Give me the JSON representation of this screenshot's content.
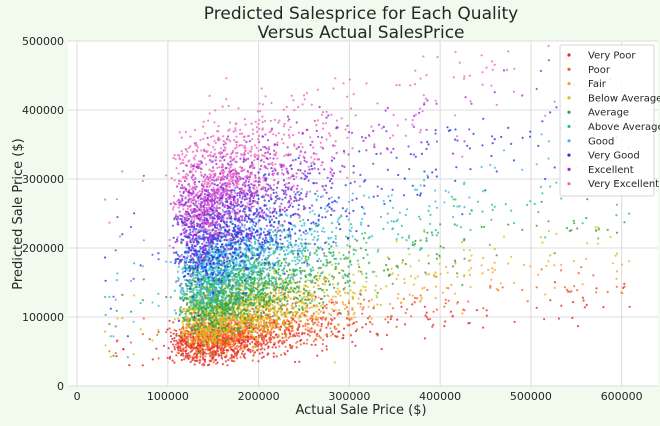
{
  "chart_data": {
    "type": "scatter",
    "title_lines": [
      "Predicted Salesprice for Each Quality",
      "Versus Actual SalesPrice"
    ],
    "xlabel": "Actual Sale Price ($)",
    "ylabel": "Predicted Sale Price ($)",
    "xlim": [
      -10000,
      640000
    ],
    "ylim": [
      0,
      500000
    ],
    "xticks": [
      0,
      100000,
      200000,
      300000,
      400000,
      500000,
      600000
    ],
    "yticks": [
      0,
      100000,
      200000,
      300000,
      400000,
      500000
    ],
    "grid": true,
    "legend_position": "top-right",
    "series": [
      {
        "name": "Very Poor",
        "color": "#e8262b",
        "center": [
          170000,
          65000
        ],
        "spread": [
          75000,
          16000
        ],
        "slope": 0.15,
        "n": 900
      },
      {
        "name": "Poor",
        "color": "#f25c2a",
        "center": [
          180000,
          80000
        ],
        "spread": [
          80000,
          18000
        ],
        "slope": 0.18,
        "n": 800
      },
      {
        "name": "Fair",
        "color": "#f6a623",
        "center": [
          185000,
          100000
        ],
        "spread": [
          82000,
          20000
        ],
        "slope": 0.22,
        "n": 800
      },
      {
        "name": "Below Average",
        "color": "#c8c81e",
        "center": [
          185000,
          115000
        ],
        "spread": [
          80000,
          22000
        ],
        "slope": 0.25,
        "n": 800
      },
      {
        "name": "Average",
        "color": "#3a9e3a",
        "center": [
          180000,
          135000
        ],
        "spread": [
          78000,
          24000
        ],
        "slope": 0.28,
        "n": 900
      },
      {
        "name": "Above Average",
        "color": "#2cc38a",
        "center": [
          180000,
          160000
        ],
        "spread": [
          78000,
          26000
        ],
        "slope": 0.32,
        "n": 850
      },
      {
        "name": "Good",
        "color": "#3fb9e8",
        "center": [
          180000,
          190000
        ],
        "spread": [
          80000,
          30000
        ],
        "slope": 0.38,
        "n": 850
      },
      {
        "name": "Very Good",
        "color": "#2b3ae0",
        "center": [
          175000,
          225000
        ],
        "spread": [
          78000,
          34000
        ],
        "slope": 0.42,
        "n": 900
      },
      {
        "name": "Excellent",
        "color": "#9a2be0",
        "center": [
          170000,
          270000
        ],
        "spread": [
          75000,
          38000
        ],
        "slope": 0.45,
        "n": 900
      },
      {
        "name": "Very Excellent",
        "color": "#f067c0",
        "center": [
          170000,
          310000
        ],
        "spread": [
          75000,
          42000
        ],
        "slope": 0.48,
        "n": 900
      }
    ]
  }
}
